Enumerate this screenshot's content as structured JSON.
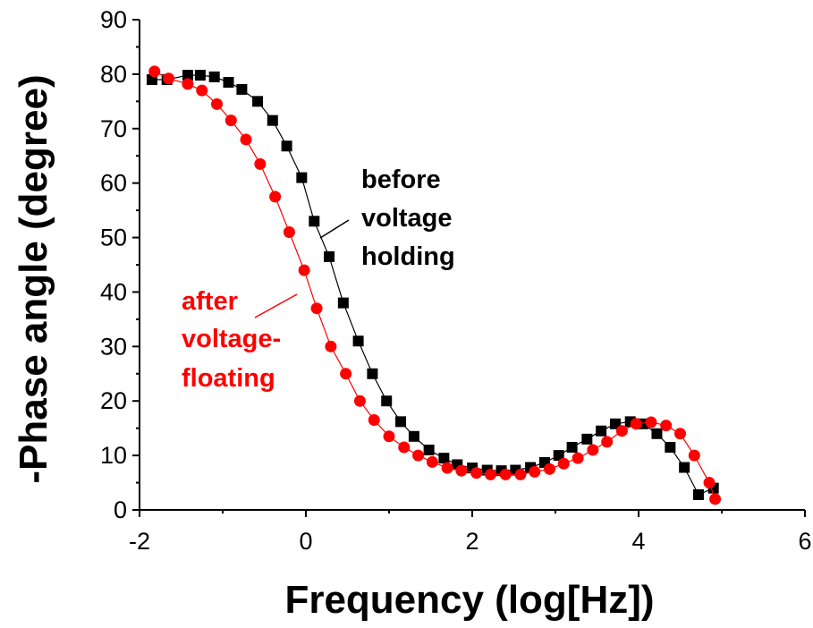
{
  "chart_data": {
    "type": "scatter",
    "xlabel": "Frequency (log[Hz])",
    "ylabel": "-Phase angle (degree)",
    "xlim": [
      -2,
      6
    ],
    "ylim": [
      0,
      90
    ],
    "xticks": [
      "-2",
      "0",
      "2",
      "4",
      "6"
    ],
    "yticks": [
      "0",
      "10",
      "20",
      "30",
      "40",
      "50",
      "60",
      "70",
      "80",
      "90"
    ],
    "grid": false,
    "series": [
      {
        "name": "before voltage holding",
        "color": "#000000",
        "marker": "square",
        "x": [
          -1.85,
          -1.67,
          -1.42,
          -1.27,
          -1.1,
          -0.93,
          -0.77,
          -0.58,
          -0.4,
          -0.23,
          -0.05,
          0.1,
          0.28,
          0.45,
          0.63,
          0.8,
          0.97,
          1.14,
          1.3,
          1.48,
          1.66,
          1.82,
          2.0,
          2.18,
          2.35,
          2.52,
          2.7,
          2.87,
          3.04,
          3.2,
          3.38,
          3.55,
          3.72,
          3.9,
          4.05,
          4.22,
          4.38,
          4.55,
          4.72,
          4.9
        ],
        "y": [
          79,
          79,
          79.8,
          79.8,
          79.5,
          78.5,
          77.2,
          75,
          71.5,
          66.8,
          61,
          53,
          46.5,
          38,
          31,
          25,
          20,
          16.2,
          13.5,
          11,
          9.5,
          8.3,
          7.7,
          7.3,
          7.2,
          7.3,
          7.8,
          8.7,
          10,
          11.5,
          13,
          14.5,
          15.8,
          16.2,
          15.8,
          14,
          11.5,
          7.8,
          2.8,
          4
        ]
      },
      {
        "name": "after voltage-floating",
        "color": "#ff0000",
        "marker": "circle",
        "x": [
          -1.82,
          -1.65,
          -1.42,
          -1.25,
          -1.07,
          -0.9,
          -0.72,
          -0.55,
          -0.37,
          -0.2,
          -0.02,
          0.13,
          0.3,
          0.48,
          0.65,
          0.82,
          1.0,
          1.18,
          1.35,
          1.52,
          1.7,
          1.87,
          2.05,
          2.22,
          2.4,
          2.58,
          2.75,
          2.93,
          3.1,
          3.27,
          3.45,
          3.62,
          3.8,
          3.97,
          4.15,
          4.33,
          4.5,
          4.67,
          4.85,
          4.92
        ],
        "y": [
          80.5,
          79.2,
          78.2,
          77,
          74.5,
          71.5,
          68,
          63.5,
          57.5,
          51,
          44,
          37,
          30,
          25,
          20,
          16.5,
          13.5,
          11.5,
          10,
          8.8,
          7.7,
          7.2,
          6.8,
          6.5,
          6.5,
          6.5,
          7,
          7.5,
          8.5,
          9.5,
          11,
          12.5,
          14.5,
          15.8,
          16.1,
          15.5,
          14,
          10,
          5,
          2
        ]
      }
    ],
    "annotations": [
      {
        "lines": [
          "before",
          "voltage",
          "holding"
        ],
        "color": "#000000"
      },
      {
        "lines": [
          "after",
          "voltage-",
          "floating"
        ],
        "color": "#ff0000"
      }
    ]
  }
}
